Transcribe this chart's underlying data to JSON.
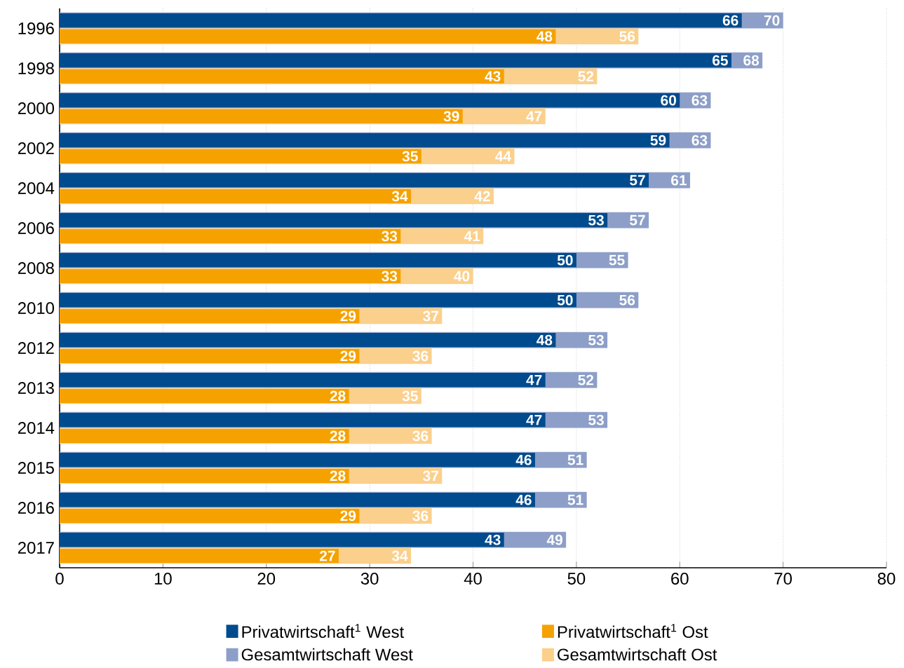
{
  "chart_data": {
    "type": "bar",
    "orientation": "horizontal",
    "categories": [
      "1996",
      "1998",
      "2000",
      "2002",
      "2004",
      "2006",
      "2008",
      "2010",
      "2012",
      "2013",
      "2014",
      "2015",
      "2016",
      "2017"
    ],
    "series": [
      {
        "name": "Privatwirtschaft$^{1}$ West",
        "color": "#004b8d",
        "values": [
          66,
          65,
          60,
          59,
          57,
          53,
          50,
          50,
          48,
          47,
          47,
          46,
          46,
          43
        ]
      },
      {
        "name": "Gesamtwirtschaft West",
        "color": "#8d9fc8",
        "values": [
          70,
          68,
          63,
          63,
          61,
          57,
          55,
          56,
          53,
          52,
          53,
          51,
          51,
          49
        ]
      },
      {
        "name": "Privatwirtschaft$^{1}$ Ost",
        "color": "#f5a200",
        "values": [
          48,
          43,
          39,
          35,
          34,
          33,
          33,
          29,
          29,
          28,
          28,
          28,
          29,
          27
        ]
      },
      {
        "name": "Gesamtwirtschaft Ost",
        "color": "#fbd08c",
        "values": [
          56,
          52,
          47,
          44,
          42,
          41,
          40,
          37,
          36,
          35,
          36,
          37,
          36,
          34
        ]
      }
    ],
    "xlim": [
      0,
      80
    ],
    "xticks": [
      0,
      10,
      20,
      30,
      40,
      50,
      60,
      70,
      80
    ],
    "grid": "x",
    "legend": "bottom",
    "data_labels": true
  }
}
